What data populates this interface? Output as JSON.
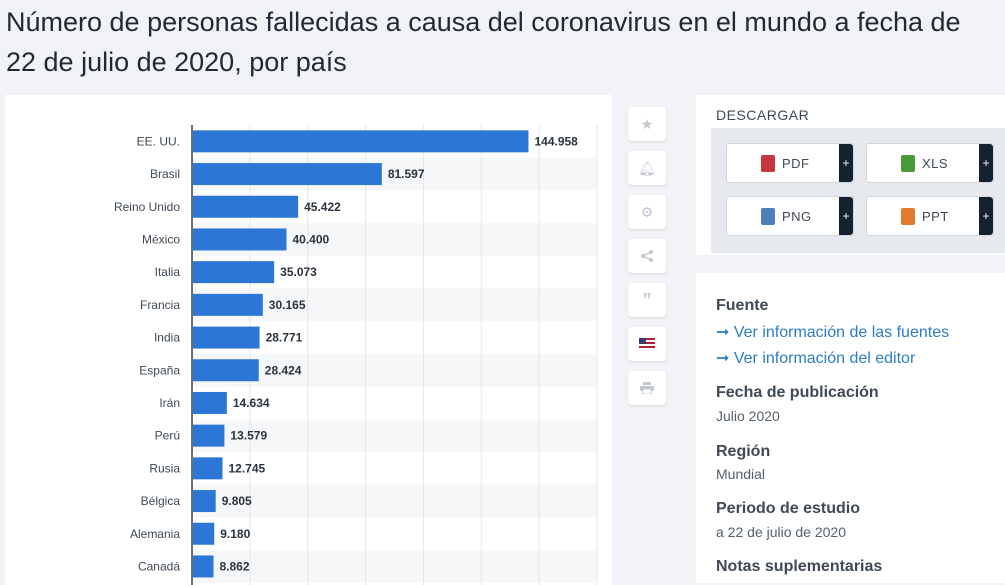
{
  "title": "Número de personas fallecidas a causa del coronavirus en el mundo a fecha de 22 de julio de 2020, por país",
  "chart_data": {
    "type": "bar",
    "orientation": "horizontal",
    "categories": [
      "EE. UU.",
      "Brasil",
      "Reino Unido",
      "México",
      "Italia",
      "Francia",
      "India",
      "España",
      "Irán",
      "Perú",
      "Rusia",
      "Bélgica",
      "Alemania",
      "Canadá"
    ],
    "values": [
      144958,
      81597,
      45422,
      40400,
      35073,
      30165,
      28771,
      28424,
      14634,
      13579,
      12745,
      9805,
      9180,
      8862
    ],
    "value_labels": [
      "144.958",
      "81.597",
      "45.422",
      "40.400",
      "35.073",
      "30.165",
      "28.771",
      "28.424",
      "14.634",
      "13.579",
      "12.745",
      "9.805",
      "9.180",
      "8.862"
    ],
    "xlim": [
      0,
      175000
    ],
    "grid": true,
    "bar_color": "#2c77d6"
  },
  "toolbar": {
    "icons": [
      "star-icon",
      "bell-icon",
      "gear-icon",
      "share-icon",
      "quote-icon",
      "flag-icon",
      "print-icon"
    ]
  },
  "download": {
    "heading": "DESCARGAR",
    "buttons": [
      {
        "label": "PDF",
        "color": "#c8363d"
      },
      {
        "label": "XLS",
        "color": "#4a9a3c"
      },
      {
        "label": "PNG",
        "color": "#4f7fb8"
      },
      {
        "label": "PPT",
        "color": "#e07a2c"
      }
    ],
    "plus": "+"
  },
  "info": {
    "source_heading": "Fuente",
    "source_link": "➞ Ver información de las fuentes",
    "editor_link": "➞ Ver información del editor",
    "pub_heading": "Fecha de publicación",
    "pub_value": "Julio 2020",
    "region_heading": "Región",
    "region_value": "Mundial",
    "period_heading": "Periodo de estudio",
    "period_value": "a 22 de julio de 2020",
    "notes_heading": "Notas suplementarias"
  }
}
